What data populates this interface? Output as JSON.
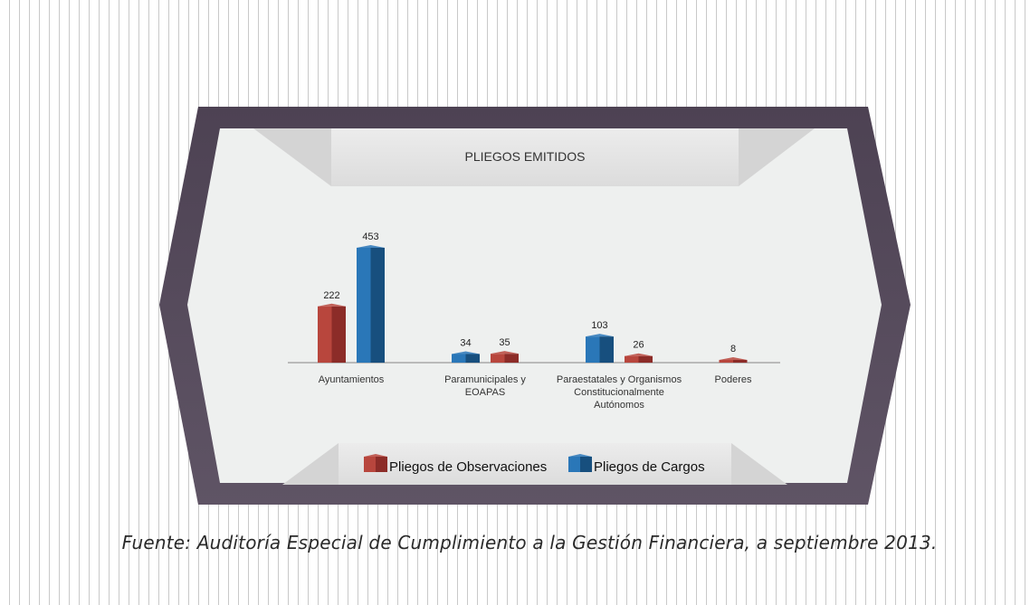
{
  "chart_data": {
    "type": "bar",
    "title": "PLIEGOS EMITIDOS",
    "categories": [
      [
        "Ayuntamientos"
      ],
      [
        "Paramunicipales y",
        "EOAPAS"
      ],
      [
        "Paraestatales y Organismos",
        "Constitucionalmente",
        "Autónomos"
      ],
      [
        "Poderes"
      ]
    ],
    "bars": [
      {
        "category": 0,
        "series": "Pliegos de Observaciones",
        "value": 222
      },
      {
        "category": 0,
        "series": "Pliegos de Cargos",
        "value": 453
      },
      {
        "category": 1,
        "series": "Pliegos de Cargos",
        "value": 34
      },
      {
        "category": 1,
        "series": "Pliegos de Observaciones",
        "value": 35
      },
      {
        "category": 2,
        "series": "Pliegos de Cargos",
        "value": 103
      },
      {
        "category": 2,
        "series": "Pliegos de Observaciones",
        "value": 26
      },
      {
        "category": 3,
        "series": "Pliegos de Observaciones",
        "value": 8
      }
    ],
    "series": [
      {
        "name": "Pliegos de Observaciones",
        "values": [
          222,
          35,
          26,
          8
        ],
        "color": "#b8463d",
        "dark": "#8c2c28"
      },
      {
        "name": "Pliegos de Cargos",
        "values": [
          453,
          34,
          103,
          null
        ],
        "color": "#2a77b8",
        "dark": "#174f7e"
      }
    ],
    "legend_position": "bottom",
    "grid": false
  },
  "source": "Fuente: Auditoría Especial de Cumplimiento a la Gestión Financiera, a septiembre 2013."
}
